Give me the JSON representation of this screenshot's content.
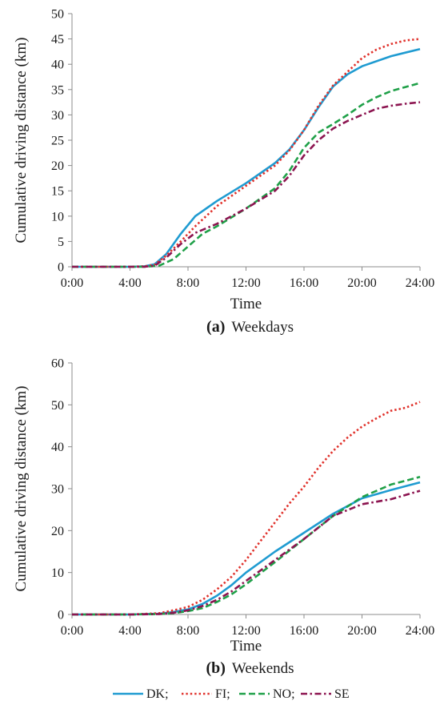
{
  "colors": {
    "DK": "#1f9bd1",
    "FI": "#e0302a",
    "NO": "#1fa048",
    "SE": "#8c1450",
    "axis": "#8c8c8c"
  },
  "legend": {
    "items": [
      {
        "key": "DK",
        "label": "DK;"
      },
      {
        "key": "FI",
        "label": "FI;"
      },
      {
        "key": "NO",
        "label": "NO;"
      },
      {
        "key": "SE",
        "label": "SE"
      }
    ],
    "placement": "bottom-center"
  },
  "chart_data": [
    {
      "type": "line",
      "caption_letter": "(a)",
      "caption_text": "Weekdays",
      "xlabel": "Time",
      "ylabel": "Cumulative driving distance (km)",
      "xlim": [
        0,
        24
      ],
      "ylim": [
        0,
        50
      ],
      "yticks": [
        0,
        5,
        10,
        15,
        20,
        25,
        30,
        35,
        40,
        45,
        50
      ],
      "xticks": [
        0,
        4,
        8,
        12,
        16,
        20,
        24
      ],
      "xtick_labels": [
        "0:00",
        "4:00",
        "8:00",
        "12:00",
        "16:00",
        "20:00",
        "24:00"
      ],
      "grid": false,
      "series": [
        {
          "name": "DK",
          "style": "solid",
          "x": [
            0,
            4,
            5,
            5.7,
            6.5,
            7.5,
            8.5,
            10,
            12,
            14,
            15,
            16,
            17,
            18,
            19,
            20,
            22,
            24
          ],
          "y": [
            0,
            0,
            0.1,
            0.5,
            2.5,
            6.5,
            10,
            13,
            16.5,
            20.5,
            23.2,
            27,
            31.5,
            35.6,
            38,
            39.6,
            41.6,
            43
          ]
        },
        {
          "name": "FI",
          "style": "dotted",
          "x": [
            0,
            4,
            5,
            5.7,
            6.5,
            7.5,
            8.5,
            10,
            12,
            14,
            15,
            16,
            17,
            18,
            19,
            20,
            21,
            22,
            23,
            24
          ],
          "y": [
            0,
            0,
            0.1,
            0.4,
            2.2,
            5,
            8,
            12,
            16,
            20,
            23,
            27,
            31.8,
            35.8,
            38.5,
            41.2,
            42.9,
            44,
            44.7,
            45
          ]
        },
        {
          "name": "NO",
          "style": "dashed",
          "x": [
            0,
            4,
            5,
            6,
            7,
            8,
            9,
            10,
            12,
            14,
            15,
            16,
            17,
            18,
            19,
            20,
            21,
            22,
            23,
            24
          ],
          "y": [
            0,
            0,
            0,
            0.2,
            1.5,
            4,
            6.5,
            8,
            11.5,
            15.5,
            19,
            23.5,
            26.5,
            28.2,
            30,
            32,
            33.5,
            34.7,
            35.5,
            36.3
          ]
        },
        {
          "name": "SE",
          "style": "dash-dot",
          "x": [
            0,
            4,
            5,
            5.7,
            6.5,
            7.5,
            8.5,
            10,
            12,
            14,
            15,
            16,
            17,
            18,
            19,
            20,
            21,
            22,
            23,
            24
          ],
          "y": [
            0,
            0,
            0,
            0.2,
            1.8,
            4.5,
            6.7,
            8.5,
            11.5,
            15,
            18,
            22,
            25,
            27.3,
            28.8,
            30,
            31.2,
            31.8,
            32.2,
            32.5
          ]
        }
      ]
    },
    {
      "type": "line",
      "caption_letter": "(b)",
      "caption_text": "Weekends",
      "xlabel": "Time",
      "ylabel": "Cumulative driving distance (km)",
      "xlim": [
        0,
        24
      ],
      "ylim": [
        0,
        60
      ],
      "yticks": [
        0,
        10,
        20,
        30,
        40,
        50,
        60
      ],
      "xticks": [
        0,
        4,
        8,
        12,
        16,
        20,
        24
      ],
      "xtick_labels": [
        "0:00",
        "4:00",
        "8:00",
        "12:00",
        "16:00",
        "20:00",
        "24:00"
      ],
      "grid": false,
      "series": [
        {
          "name": "DK",
          "style": "solid",
          "x": [
            0,
            4,
            6,
            7,
            8,
            9,
            10,
            11,
            12,
            14,
            16,
            18,
            20,
            22,
            24
          ],
          "y": [
            0,
            0,
            0.2,
            0.6,
            1.2,
            2.5,
            4.5,
            7,
            10,
            15,
            19.5,
            24,
            27.7,
            29.7,
            31.5
          ]
        },
        {
          "name": "FI",
          "style": "dotted",
          "x": [
            0,
            4,
            6,
            7,
            8,
            9,
            10,
            11,
            12,
            13,
            14,
            15,
            16,
            17,
            18,
            19,
            20,
            21,
            22,
            23,
            24
          ],
          "y": [
            0,
            0,
            0.3,
            1,
            1.8,
            3.5,
            6,
            9,
            13,
            17.5,
            22,
            26.5,
            30.5,
            35,
            39,
            42.2,
            44.8,
            46.8,
            48.6,
            49.3,
            50.7
          ]
        },
        {
          "name": "NO",
          "style": "dashed",
          "x": [
            0,
            4,
            6,
            7,
            8,
            9,
            10,
            11,
            12,
            14,
            16,
            18,
            20,
            22,
            24
          ],
          "y": [
            0,
            0,
            0.1,
            0.3,
            0.8,
            1.5,
            3,
            4.8,
            7.2,
            12.5,
            18,
            23.5,
            28,
            31,
            32.8
          ]
        },
        {
          "name": "SE",
          "style": "dash-dot",
          "x": [
            0,
            4,
            6,
            7,
            8,
            9,
            10,
            11,
            12,
            14,
            16,
            18,
            20,
            22,
            24
          ],
          "y": [
            0,
            0,
            0.1,
            0.4,
            1,
            2,
            3.5,
            5.5,
            8,
            13,
            18,
            23.5,
            26.3,
            27.5,
            29.5
          ]
        }
      ]
    }
  ]
}
